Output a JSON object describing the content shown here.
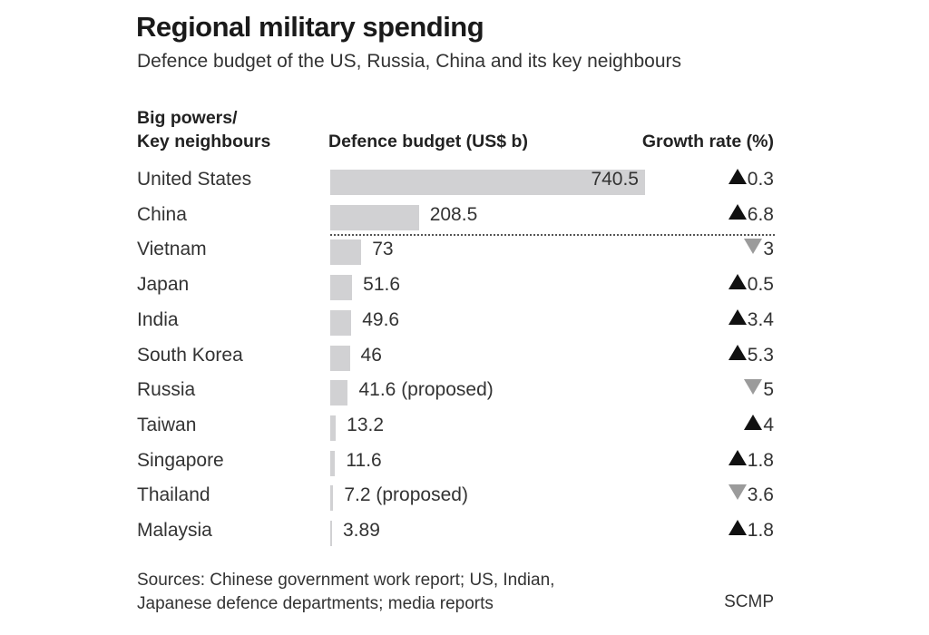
{
  "title": "Regional military spending",
  "subtitle": "Defence budget of the US, Russia, China and its key neighbours",
  "headers": {
    "country_line1": "Big powers/",
    "country_line2": "Key neighbours",
    "budget": "Defence budget (US$ b)",
    "growth": "Growth rate (%)"
  },
  "colors": {
    "bar": "#d1d1d3",
    "up": "#111111",
    "down": "#9b9b9b"
  },
  "chart_data": {
    "type": "bar",
    "orientation": "horizontal",
    "title": "Regional military spending",
    "subtitle": "Defence budget of the US, Russia, China and its key neighbours",
    "categories": [
      "United States",
      "China",
      "Vietnam",
      "Japan",
      "India",
      "South Korea",
      "Russia",
      "Taiwan",
      "Singapore",
      "Thailand",
      "Malaysia"
    ],
    "values": [
      740.5,
      208.5,
      73,
      51.6,
      49.6,
      46,
      41.6,
      13.2,
      11.6,
      7.2,
      3.89
    ],
    "value_labels": [
      "740.5",
      "208.5",
      "73",
      "51.6",
      "49.6",
      "46",
      "41.6 (proposed)",
      "13.2",
      "11.6",
      "7.2 (proposed)",
      "3.89"
    ],
    "growth_rates": [
      0.3,
      6.8,
      -3,
      0.5,
      3.4,
      5.3,
      -5,
      4,
      1.8,
      -3.6,
      1.8
    ],
    "growth_labels": [
      "0.3",
      "6.8",
      "3",
      "0.5",
      "3.4",
      "5.3",
      "5",
      "4",
      "1.8",
      "3.6",
      "1.8"
    ],
    "growth_direction": [
      "up",
      "up",
      "down",
      "up",
      "up",
      "up",
      "down",
      "up",
      "up",
      "down",
      "up"
    ],
    "xlabel": "Defence budget (US$ b)",
    "grid": false
  },
  "source": {
    "line1": "Sources: Chinese government work report; US, Indian,",
    "line2": "Japanese defence departments; media reports"
  },
  "credit": "SCMP"
}
